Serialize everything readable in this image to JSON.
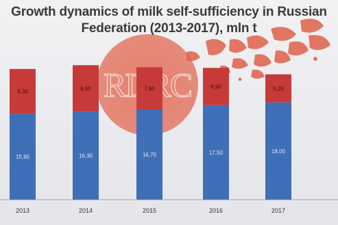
{
  "title": {
    "line1": "Growth dynamics of milk self-sufficiency in Russian",
    "line2": "Federation (2013-2017), mln t"
  },
  "watermark": {
    "text": "RDRC",
    "color": "#e0614a"
  },
  "colors": {
    "bottom": "#3f6fb6",
    "top": "#c73a3a",
    "background": "#eceef2"
  },
  "chart_data": {
    "type": "bar",
    "stacked": true,
    "categories": [
      "2013",
      "2014",
      "2015",
      "2016",
      "2017"
    ],
    "series": [
      {
        "values": [
          15.9,
          16.3,
          16.7,
          17.5,
          18.0
        ],
        "labels": [
          "15,90",
          "16,30",
          "16,70",
          "17,50",
          "18,00"
        ],
        "color": "#3f6fb6"
      },
      {
        "values": [
          8.3,
          8.6,
          7.8,
          6.9,
          5.2
        ],
        "labels": [
          "8,30",
          "8,60",
          "7,80",
          "6,90",
          "5,20"
        ],
        "color": "#c73a3a"
      }
    ],
    "ylim": [
      0,
      25
    ]
  }
}
